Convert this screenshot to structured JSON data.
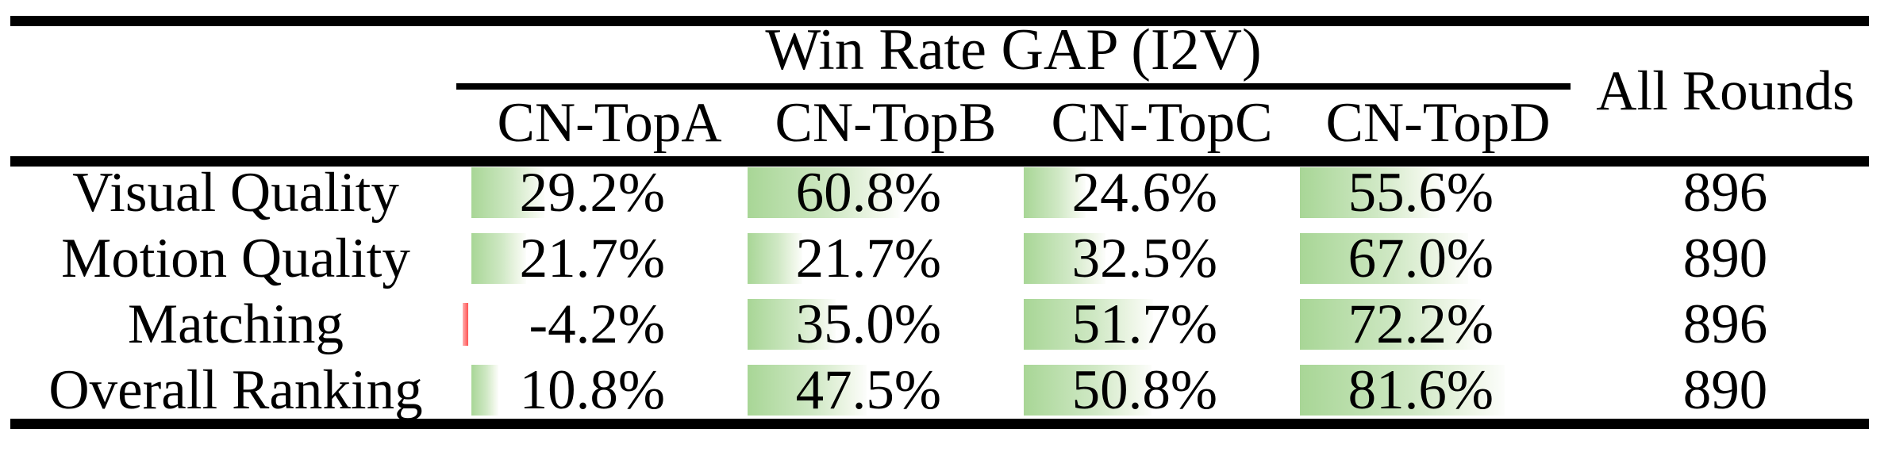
{
  "table": {
    "title": "Win Rate GAP (I2V)",
    "all_rounds_header": "All Rounds",
    "columns": [
      "CN-TopA",
      "CN-TopB",
      "CN-TopC",
      "CN-TopD"
    ],
    "rows": [
      {
        "label": "Visual Quality",
        "values": [
          "29.2%",
          "60.8%",
          "24.6%",
          "55.6%"
        ],
        "bars": [
          29.2,
          60.8,
          24.6,
          55.6
        ],
        "all_rounds": "896"
      },
      {
        "label": "Motion Quality",
        "values": [
          "21.7%",
          "21.7%",
          "32.5%",
          "67.0%"
        ],
        "bars": [
          21.7,
          21.7,
          32.5,
          67.0
        ],
        "all_rounds": "890"
      },
      {
        "label": "Matching",
        "values": [
          "-4.2%",
          "35.0%",
          "51.7%",
          "72.2%"
        ],
        "bars": [
          -4.2,
          35.0,
          51.7,
          72.2
        ],
        "all_rounds": "896"
      },
      {
        "label": "Overall Ranking",
        "values": [
          "10.8%",
          "47.5%",
          "50.8%",
          "81.6%"
        ],
        "bars": [
          10.8,
          47.5,
          50.8,
          81.6
        ],
        "all_rounds": "890"
      }
    ]
  },
  "colors": {
    "positive_bar_green": "#a8d696",
    "negative_bar_red": "#ff5252",
    "rule_black": "#000000"
  },
  "chart_data": {
    "type": "table",
    "title": "Win Rate GAP (I2V)",
    "columns": [
      "CN-TopA",
      "CN-TopB",
      "CN-TopC",
      "CN-TopD",
      "All Rounds"
    ],
    "row_labels": [
      "Visual Quality",
      "Motion Quality",
      "Matching",
      "Overall Ranking"
    ],
    "win_rate_gap_percent": [
      [
        29.2,
        60.8,
        24.6,
        55.6
      ],
      [
        21.7,
        21.7,
        32.5,
        67.0
      ],
      [
        -4.2,
        35.0,
        51.7,
        72.2
      ],
      [
        10.8,
        47.5,
        50.8,
        81.6
      ]
    ],
    "all_rounds": [
      896,
      890,
      896,
      890
    ]
  }
}
